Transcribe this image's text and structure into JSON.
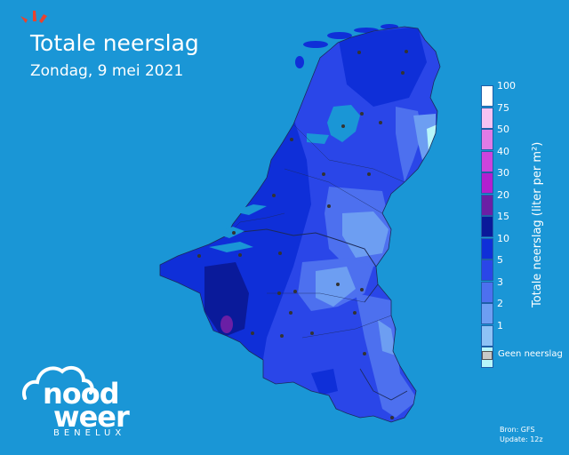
{
  "header": {
    "title": "Totale neerslag",
    "subtitle": "Zondag, 9 mei 2021"
  },
  "legend": {
    "title": "Totale neerslag (liter per m²)",
    "levels": [
      {
        "label": "100",
        "color": "#ffffff"
      },
      {
        "label": "75",
        "color": "#f5c2f2"
      },
      {
        "label": "50",
        "color": "#e07be6"
      },
      {
        "label": "40",
        "color": "#cc44dd"
      },
      {
        "label": "30",
        "color": "#b21fd0"
      },
      {
        "label": "20",
        "color": "#6a1fa5"
      },
      {
        "label": "15",
        "color": "#0a1a9a"
      },
      {
        "label": "10",
        "color": "#0f2fd8"
      },
      {
        "label": "5",
        "color": "#2a46e8"
      },
      {
        "label": "3",
        "color": "#4d70ef"
      },
      {
        "label": "2",
        "color": "#6d9ef2"
      },
      {
        "label": "1",
        "color": "#8ec2f6"
      },
      {
        "label": "",
        "color": "#b8f6fa"
      }
    ],
    "no_rain_label": "Geen neerslag",
    "no_rain_color": "#c8c8c8"
  },
  "logo": {
    "line1": "nood",
    "line2": "weer",
    "sub": "BENELUX"
  },
  "source": {
    "line1": "Bron: GFS",
    "line2": "Update: 12z"
  },
  "colors": {
    "background": "#1a96d6",
    "sea_blue": "#1a96d6",
    "border": "#1c2a5a",
    "city_dot": "#333333",
    "accent_logo": "#e8432e"
  }
}
